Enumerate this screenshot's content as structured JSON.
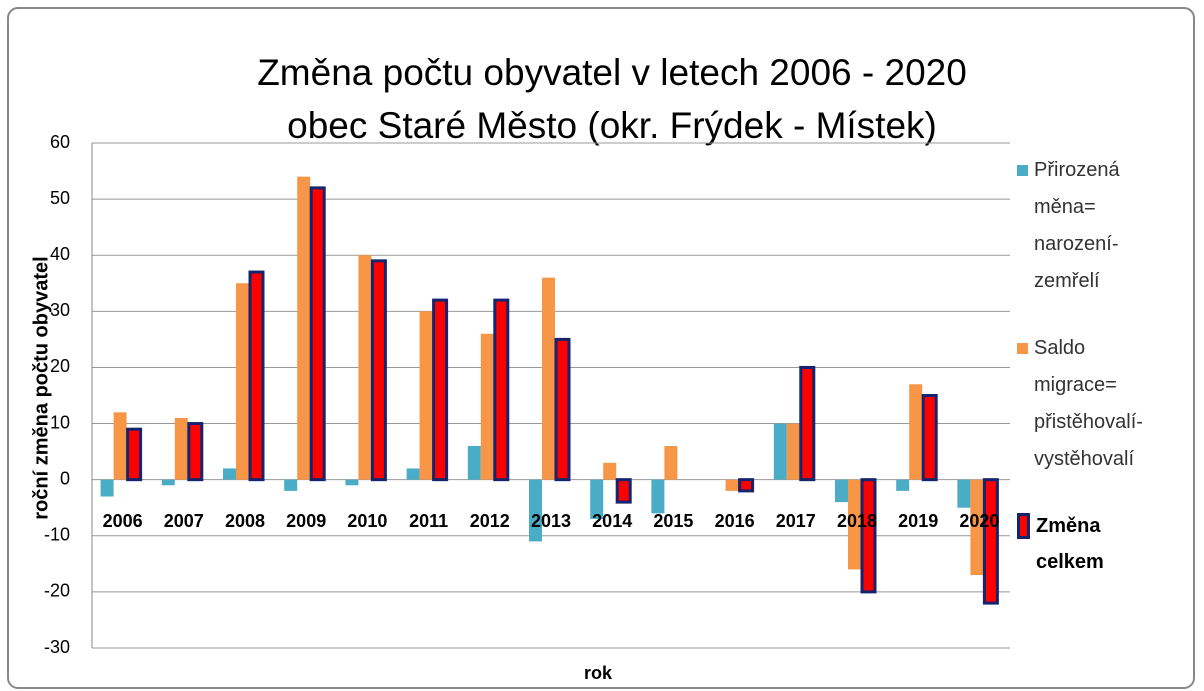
{
  "chart_data": {
    "type": "bar",
    "title": "Změna počtu obyvatel v letech 2006 - 2020",
    "subtitle": "obec Staré Město (okr. Frýdek - Místek)",
    "x_label": "rok",
    "y_label": "roční změna počtu obyvatel",
    "categories": [
      "2006",
      "2007",
      "2008",
      "2009",
      "2010",
      "2011",
      "2012",
      "2013",
      "2014",
      "2015",
      "2016",
      "2017",
      "2018",
      "2019",
      "2020"
    ],
    "series": [
      {
        "name": "Přirozená měna= narození-zemřelí",
        "color": "#4bacc6",
        "values": [
          -3,
          -1,
          2,
          -2,
          -1,
          2,
          6,
          -11,
          -7,
          -6,
          0,
          10,
          -4,
          -2,
          -5
        ]
      },
      {
        "name": "Saldo migrace= přistěhovalí-vystěhovalí",
        "color": "#f79646",
        "values": [
          12,
          11,
          35,
          54,
          40,
          30,
          26,
          36,
          3,
          6,
          -2,
          10,
          -16,
          17,
          -17
        ]
      },
      {
        "name": "Změna celkem",
        "color": "#ff0000",
        "border_color": "#14246e",
        "values": [
          9,
          10,
          37,
          52,
          39,
          32,
          32,
          25,
          -4,
          0,
          -2,
          20,
          -20,
          15,
          -22
        ]
      }
    ],
    "ylim": [
      -30,
      60
    ],
    "yticks": [
      -30,
      -20,
      -10,
      0,
      10,
      20,
      30,
      40,
      50,
      60
    ],
    "grid": true,
    "legend": "right"
  }
}
